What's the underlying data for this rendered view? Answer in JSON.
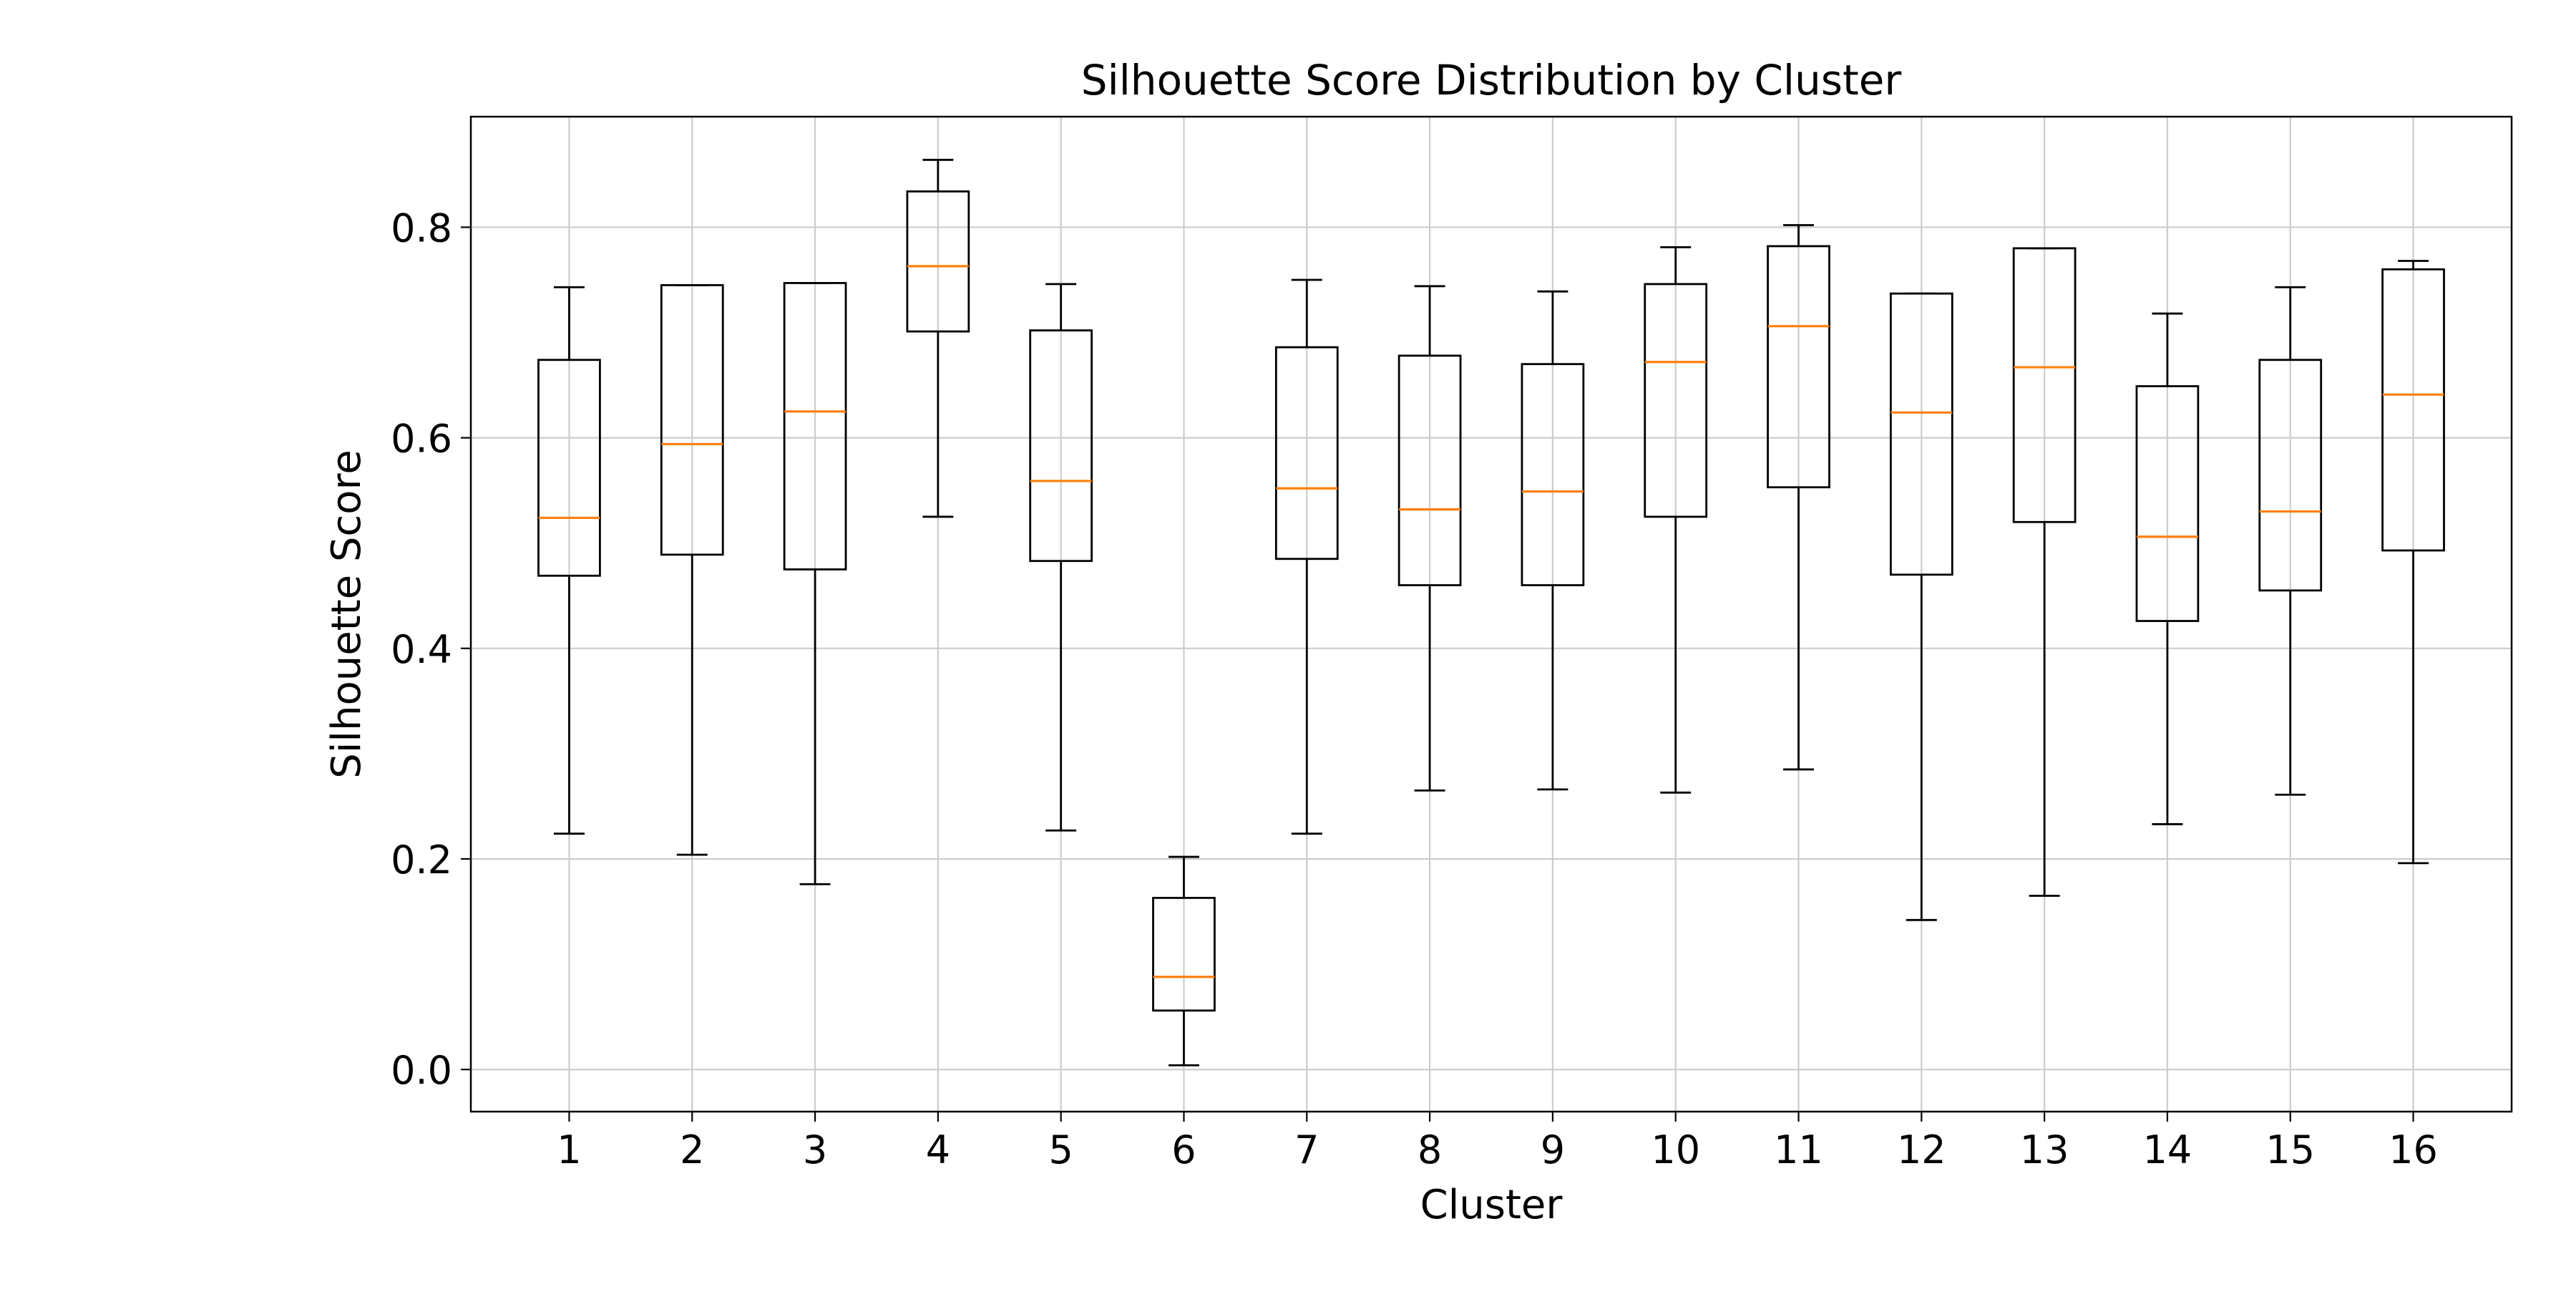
{
  "chart_data": {
    "type": "box",
    "title": "Silhouette Score Distribution by Cluster",
    "xlabel": "Cluster",
    "ylabel": "Silhouette Score",
    "ylim": [
      -0.04,
      0.905
    ],
    "yticks": [
      0.0,
      0.2,
      0.4,
      0.6,
      0.8
    ],
    "ytick_labels": [
      "0.0",
      "0.2",
      "0.4",
      "0.6",
      "0.8"
    ],
    "grid": true,
    "legend": "none",
    "median_color": "#ff7f0e",
    "box_color": "#000000",
    "grid_color": "#cccccc",
    "categories": [
      "1",
      "2",
      "3",
      "4",
      "5",
      "6",
      "7",
      "8",
      "9",
      "10",
      "11",
      "12",
      "13",
      "14",
      "15",
      "16"
    ],
    "boxes": [
      {
        "whislo": 0.224,
        "q1": 0.469,
        "med": 0.524,
        "q3": 0.674,
        "whishi": 0.743
      },
      {
        "whislo": 0.204,
        "q1": 0.489,
        "med": 0.594,
        "q3": 0.745,
        "whishi": 0.745
      },
      {
        "whislo": 0.176,
        "q1": 0.475,
        "med": 0.625,
        "q3": 0.747,
        "whishi": 0.747
      },
      {
        "whislo": 0.525,
        "q1": 0.701,
        "med": 0.763,
        "q3": 0.834,
        "whishi": 0.864
      },
      {
        "whislo": 0.227,
        "q1": 0.483,
        "med": 0.559,
        "q3": 0.702,
        "whishi": 0.746
      },
      {
        "whislo": 0.004,
        "q1": 0.056,
        "med": 0.088,
        "q3": 0.163,
        "whishi": 0.202
      },
      {
        "whislo": 0.224,
        "q1": 0.485,
        "med": 0.552,
        "q3": 0.686,
        "whishi": 0.75
      },
      {
        "whislo": 0.265,
        "q1": 0.46,
        "med": 0.532,
        "q3": 0.678,
        "whishi": 0.744
      },
      {
        "whislo": 0.266,
        "q1": 0.46,
        "med": 0.549,
        "q3": 0.67,
        "whishi": 0.739
      },
      {
        "whislo": 0.263,
        "q1": 0.525,
        "med": 0.672,
        "q3": 0.746,
        "whishi": 0.781
      },
      {
        "whislo": 0.285,
        "q1": 0.553,
        "med": 0.706,
        "q3": 0.782,
        "whishi": 0.802
      },
      {
        "whislo": 0.142,
        "q1": 0.47,
        "med": 0.624,
        "q3": 0.737,
        "whishi": 0.737
      },
      {
        "whislo": 0.165,
        "q1": 0.52,
        "med": 0.667,
        "q3": 0.78,
        "whishi": 0.78
      },
      {
        "whislo": 0.233,
        "q1": 0.426,
        "med": 0.506,
        "q3": 0.649,
        "whishi": 0.718
      },
      {
        "whislo": 0.261,
        "q1": 0.455,
        "med": 0.53,
        "q3": 0.674,
        "whishi": 0.743
      },
      {
        "whislo": 0.196,
        "q1": 0.493,
        "med": 0.641,
        "q3": 0.76,
        "whishi": 0.768
      }
    ]
  }
}
